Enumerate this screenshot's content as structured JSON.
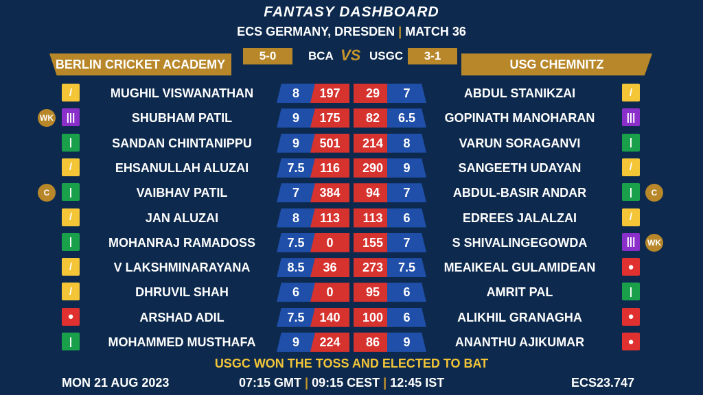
{
  "header": {
    "title": "FANTASY DASHBOARD",
    "subtitle_left": "ECS GERMANY, DRESDEN",
    "subtitle_sep": "|",
    "subtitle_right": "MATCH 36"
  },
  "teams": {
    "left": {
      "name": "BERLIN CRICKET ACADEMY",
      "abbr": "BCA",
      "record": "5-0"
    },
    "vs": "VS",
    "right": {
      "name": "USG CHEMNITZ",
      "abbr": "USGC",
      "record": "3-1"
    }
  },
  "colors": {
    "background": "#0d2a4e",
    "gold": "#b8872a",
    "blue": "#1f4fa8",
    "red": "#d6322e",
    "yellow_text": "#f3c537"
  },
  "rows": [
    {
      "l_badge": "",
      "l_icon": "all-rounder-icon",
      "l_name": "MUGHIL VISWANATHAN",
      "l_credit": "8",
      "l_points": "197",
      "r_points": "29",
      "r_credit": "7",
      "r_name": "ABDUL STANIKZAI",
      "r_icon": "all-rounder-icon",
      "r_badge": ""
    },
    {
      "l_badge": "WK",
      "l_icon": "wicketkeeper-icon",
      "l_name": "SHUBHAM PATIL",
      "l_credit": "9",
      "l_points": "175",
      "r_points": "82",
      "r_credit": "6.5",
      "r_name": "GOPINATH MANOHARAN",
      "r_icon": "wicketkeeper-icon",
      "r_badge": ""
    },
    {
      "l_badge": "",
      "l_icon": "batsman-icon",
      "l_name": "SANDAN CHINTANIPPU",
      "l_credit": "9",
      "l_points": "501",
      "r_points": "214",
      "r_credit": "8",
      "r_name": "VARUN SORAGANVI",
      "r_icon": "batsman-icon",
      "r_badge": ""
    },
    {
      "l_badge": "",
      "l_icon": "all-rounder-icon",
      "l_name": "EHSANULLAH ALUZAI",
      "l_credit": "7.5",
      "l_points": "116",
      "r_points": "290",
      "r_credit": "9",
      "r_name": "SANGEETH UDAYAN",
      "r_icon": "all-rounder-icon",
      "r_badge": ""
    },
    {
      "l_badge": "C",
      "l_icon": "batsman-icon",
      "l_name": "VAIBHAV PATIL",
      "l_credit": "7",
      "l_points": "384",
      "r_points": "94",
      "r_credit": "7",
      "r_name": "ABDUL-BASIR ANDAR",
      "r_icon": "batsman-icon",
      "r_badge": "C"
    },
    {
      "l_badge": "",
      "l_icon": "all-rounder-icon",
      "l_name": "JAN ALUZAI",
      "l_credit": "8",
      "l_points": "113",
      "r_points": "113",
      "r_credit": "6",
      "r_name": "EDREES JALALZAI",
      "r_icon": "all-rounder-icon",
      "r_badge": ""
    },
    {
      "l_badge": "",
      "l_icon": "batsman-icon",
      "l_name": "MOHANRAJ RAMADOSS",
      "l_credit": "7.5",
      "l_points": "0",
      "r_points": "155",
      "r_credit": "7",
      "r_name": "S SHIVALINGEGOWDA",
      "r_icon": "wicketkeeper-icon",
      "r_badge": "WK"
    },
    {
      "l_badge": "",
      "l_icon": "all-rounder-icon",
      "l_name": "V LAKSHMINARAYANA",
      "l_credit": "8.5",
      "l_points": "36",
      "r_points": "273",
      "r_credit": "7.5",
      "r_name": "MEAIKEAL GULAMIDEAN",
      "r_icon": "bowler-icon",
      "r_badge": ""
    },
    {
      "l_badge": "",
      "l_icon": "all-rounder-icon",
      "l_name": "DHRUVIL SHAH",
      "l_credit": "6",
      "l_points": "0",
      "r_points": "95",
      "r_credit": "6",
      "r_name": "AMRIT PAL",
      "r_icon": "batsman-icon",
      "r_badge": ""
    },
    {
      "l_badge": "",
      "l_icon": "bowler-icon",
      "l_name": "ARSHAD ADIL",
      "l_credit": "7.5",
      "l_points": "140",
      "r_points": "100",
      "r_credit": "6",
      "r_name": "ALIKHIL GRANAGHA",
      "r_icon": "bowler-icon",
      "r_badge": ""
    },
    {
      "l_badge": "",
      "l_icon": "batsman-icon",
      "l_name": "MOHAMMED MUSTHAFA",
      "l_credit": "9",
      "l_points": "224",
      "r_points": "86",
      "r_credit": "9",
      "r_name": "ANANTHU AJIKUMAR",
      "r_icon": "bowler-icon",
      "r_badge": ""
    }
  ],
  "toss": "USGC WON THE TOSS AND ELECTED TO BAT",
  "footer": {
    "date": "MON 21 AUG 2023",
    "time_gmt": "07:15 GMT",
    "time_cest": "09:15 CEST",
    "time_ist": "12:45 IST",
    "sep": "|",
    "code": "ECS23.747"
  }
}
